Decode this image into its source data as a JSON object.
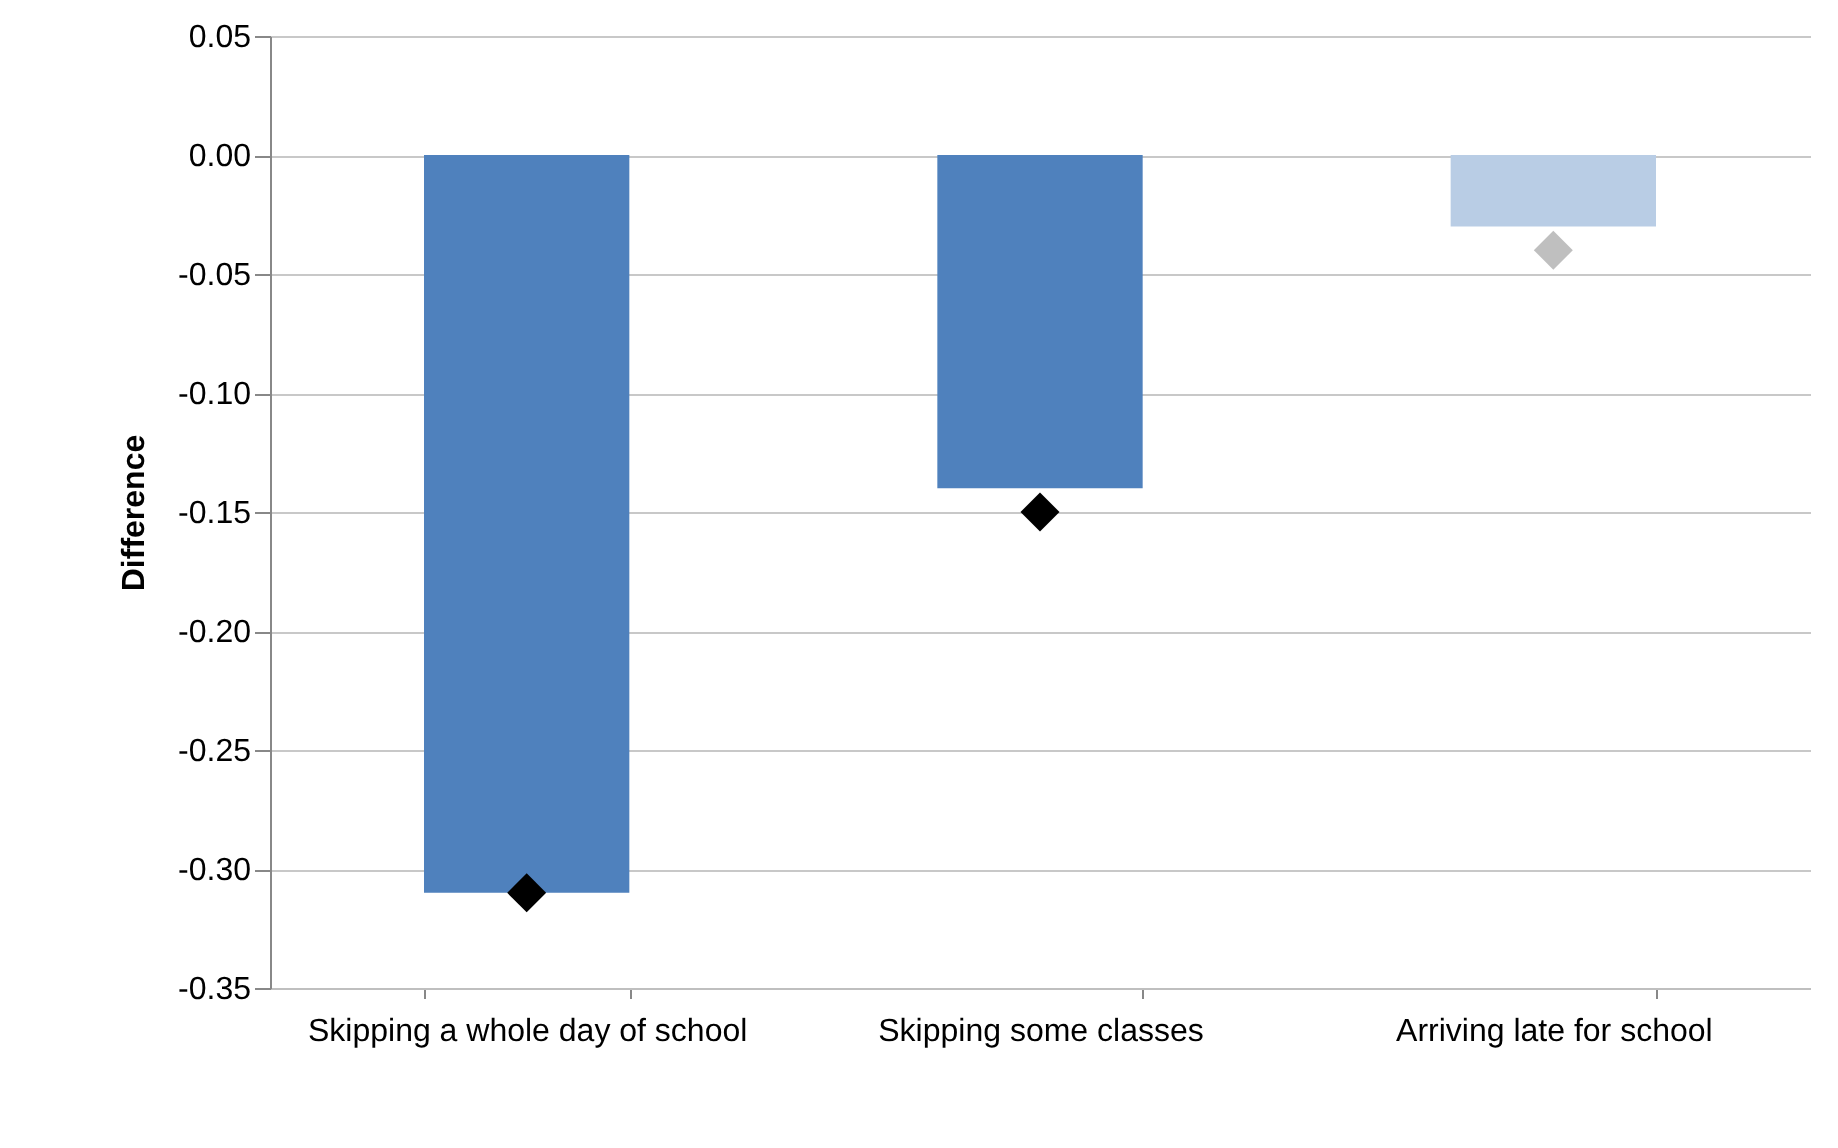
{
  "chart_data": {
    "type": "bar",
    "ylabel": "Difference",
    "categories": [
      "Skipping a whole day of school",
      "Skipping some classes",
      "Arriving late for school"
    ],
    "series": [
      {
        "colors": [
          "#4f81bd",
          "#4f81bd",
          "#b9cde5"
        ],
        "values": [
          -0.31,
          -0.14,
          -0.03
        ]
      },
      {
        "type": "scatter",
        "marker": "diamond",
        "colors": [
          "#000000",
          "#000000",
          "#bfbfbf"
        ],
        "values": [
          -0.31,
          -0.15,
          -0.04
        ]
      }
    ],
    "ylim": [
      -0.35,
      0.05
    ],
    "yticks": [
      {
        "value": -0.35,
        "label": "-0.35"
      },
      {
        "value": -0.3,
        "label": "-0.30"
      },
      {
        "value": -0.25,
        "label": "-0.25"
      },
      {
        "value": -0.2,
        "label": "-0.20"
      },
      {
        "value": -0.15,
        "label": "-0.15"
      },
      {
        "value": -0.1,
        "label": "-0.10"
      },
      {
        "value": -0.05,
        "label": "-0.05"
      },
      {
        "value": 0,
        "label": "0.00"
      },
      {
        "value": 0.05,
        "label": "0.05"
      }
    ],
    "grid": "y"
  }
}
